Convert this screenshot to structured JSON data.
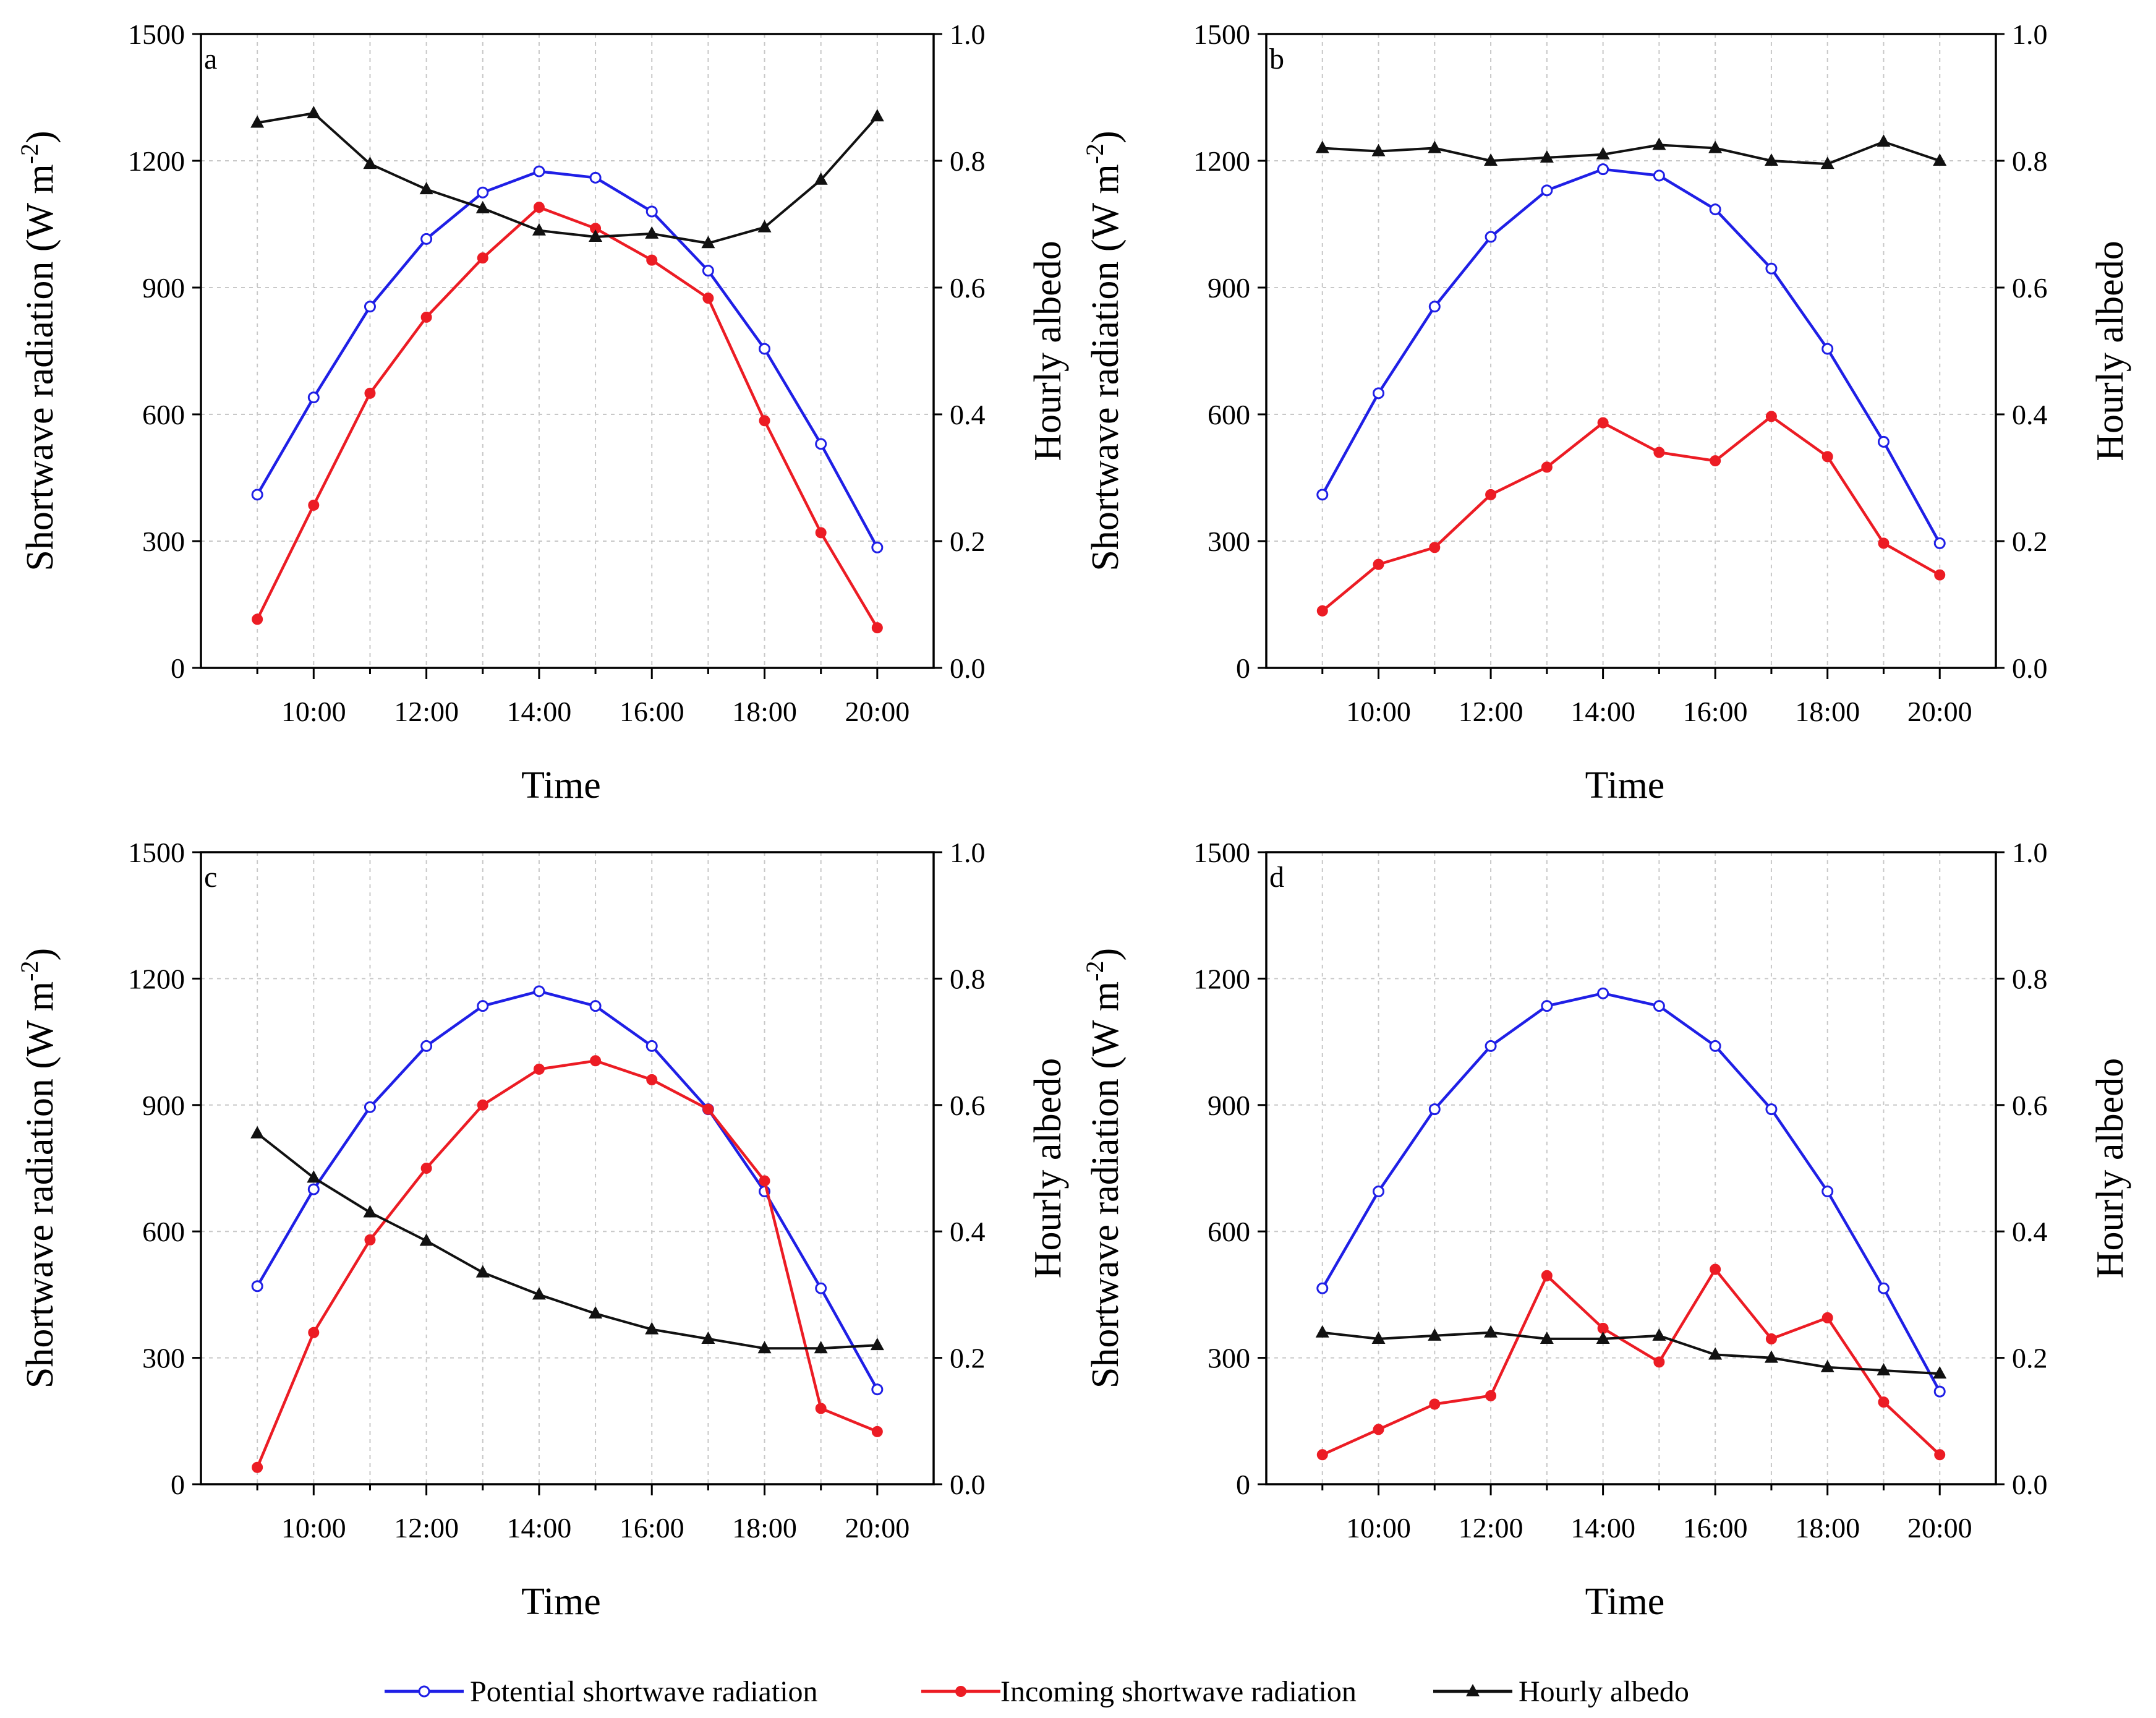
{
  "legend": {
    "potential": "Potential shortwave radiation",
    "incoming": "Incoming shortwave radiation",
    "albedo": "Hourly albedo"
  },
  "colors": {
    "potential": "#1f1fe6",
    "incoming": "#ec1c24",
    "albedo": "#111111"
  },
  "chart_data": [
    {
      "type": "line",
      "panel": "a",
      "xlabel": "Time",
      "ylabel_left": "Shortwave radiation (W m",
      "ylabel_sup": "-2",
      "ylabel_close": ")",
      "ylabel_right": "Hourly albedo",
      "x": [
        9,
        10,
        11,
        12,
        13,
        14,
        15,
        16,
        17,
        18,
        19,
        20
      ],
      "xticks": [
        "10:00",
        "12:00",
        "14:00",
        "16:00",
        "18:00",
        "20:00"
      ],
      "xtick_values": [
        10,
        12,
        14,
        16,
        18,
        20
      ],
      "yticks_left": [
        "0",
        "300",
        "600",
        "900",
        "1200",
        "1500"
      ],
      "yticks_right": [
        "0.0",
        "0.2",
        "0.4",
        "0.6",
        "0.8",
        "1.0"
      ],
      "ylim_left": [
        0,
        1500
      ],
      "ylim_right": [
        0,
        1.0
      ],
      "series": [
        {
          "name": "potential",
          "axis": "left",
          "values": [
            410,
            640,
            855,
            1015,
            1125,
            1175,
            1160,
            1080,
            940,
            755,
            530,
            285
          ]
        },
        {
          "name": "incoming",
          "axis": "left",
          "values": [
            115,
            385,
            650,
            830,
            970,
            1090,
            1040,
            965,
            875,
            585,
            320,
            95
          ]
        },
        {
          "name": "albedo",
          "axis": "right",
          "values": [
            0.86,
            0.875,
            0.795,
            0.755,
            0.725,
            0.69,
            0.68,
            0.685,
            0.67,
            0.695,
            0.77,
            0.87
          ]
        }
      ]
    },
    {
      "type": "line",
      "panel": "b",
      "xlabel": "Time",
      "ylabel_left": "Shortwave radiation (W m",
      "ylabel_sup": "-2",
      "ylabel_close": ")",
      "ylabel_right": "Hourly albedo",
      "x": [
        9,
        10,
        11,
        12,
        13,
        14,
        15,
        16,
        17,
        18,
        19,
        20
      ],
      "xticks": [
        "10:00",
        "12:00",
        "14:00",
        "16:00",
        "18:00",
        "20:00"
      ],
      "xtick_values": [
        10,
        12,
        14,
        16,
        18,
        20
      ],
      "yticks_left": [
        "0",
        "300",
        "600",
        "900",
        "1200",
        "1500"
      ],
      "yticks_right": [
        "0.0",
        "0.2",
        "0.4",
        "0.6",
        "0.8",
        "1.0"
      ],
      "ylim_left": [
        0,
        1500
      ],
      "ylim_right": [
        0,
        1.0
      ],
      "series": [
        {
          "name": "potential",
          "axis": "left",
          "values": [
            410,
            650,
            855,
            1020,
            1130,
            1180,
            1165,
            1085,
            945,
            755,
            535,
            295
          ]
        },
        {
          "name": "incoming",
          "axis": "left",
          "values": [
            135,
            245,
            285,
            410,
            475,
            580,
            510,
            490,
            595,
            500,
            295,
            220
          ]
        },
        {
          "name": "albedo",
          "axis": "right",
          "values": [
            0.82,
            0.815,
            0.82,
            0.8,
            0.805,
            0.81,
            0.825,
            0.82,
            0.8,
            0.795,
            0.83,
            0.8
          ]
        }
      ]
    },
    {
      "type": "line",
      "panel": "c",
      "xlabel": "Time",
      "ylabel_left": "Shortwave radiation (W m",
      "ylabel_sup": "-2",
      "ylabel_close": ")",
      "ylabel_right": "Hourly albedo",
      "x": [
        9,
        10,
        11,
        12,
        13,
        14,
        15,
        16,
        17,
        18,
        19,
        20
      ],
      "xticks": [
        "10:00",
        "12:00",
        "14:00",
        "16:00",
        "18:00",
        "20:00"
      ],
      "xtick_values": [
        10,
        12,
        14,
        16,
        18,
        20
      ],
      "yticks_left": [
        "0",
        "300",
        "600",
        "900",
        "1200",
        "1500"
      ],
      "yticks_right": [
        "0.0",
        "0.2",
        "0.4",
        "0.6",
        "0.8",
        "1.0"
      ],
      "ylim_left": [
        0,
        1500
      ],
      "ylim_right": [
        0,
        1.0
      ],
      "series": [
        {
          "name": "potential",
          "axis": "left",
          "values": [
            470,
            700,
            895,
            1040,
            1135,
            1170,
            1135,
            1040,
            890,
            695,
            465,
            225
          ]
        },
        {
          "name": "incoming",
          "axis": "left",
          "values": [
            40,
            360,
            580,
            750,
            900,
            985,
            1005,
            960,
            890,
            720,
            180,
            125
          ]
        },
        {
          "name": "albedo",
          "axis": "right",
          "values": [
            0.555,
            0.485,
            0.43,
            0.385,
            0.335,
            0.3,
            0.27,
            0.245,
            0.23,
            0.215,
            0.215,
            0.22
          ]
        }
      ]
    },
    {
      "type": "line",
      "panel": "d",
      "xlabel": "Time",
      "ylabel_left": "Shortwave radiation (W m",
      "ylabel_sup": "-2",
      "ylabel_close": ")",
      "ylabel_right": "Hourly albedo",
      "x": [
        9,
        10,
        11,
        12,
        13,
        14,
        15,
        16,
        17,
        18,
        19,
        20
      ],
      "xticks": [
        "10:00",
        "12:00",
        "14:00",
        "16:00",
        "18:00",
        "20:00"
      ],
      "xtick_values": [
        10,
        12,
        14,
        16,
        18,
        20
      ],
      "yticks_left": [
        "0",
        "300",
        "600",
        "900",
        "1200",
        "1500"
      ],
      "yticks_right": [
        "0.0",
        "0.2",
        "0.4",
        "0.6",
        "0.8",
        "1.0"
      ],
      "ylim_left": [
        0,
        1500
      ],
      "ylim_right": [
        0,
        1.0
      ],
      "series": [
        {
          "name": "potential",
          "axis": "left",
          "values": [
            465,
            695,
            890,
            1040,
            1135,
            1165,
            1135,
            1040,
            890,
            695,
            465,
            220
          ]
        },
        {
          "name": "incoming",
          "axis": "left",
          "values": [
            70,
            130,
            190,
            210,
            495,
            370,
            290,
            510,
            345,
            395,
            195,
            70
          ]
        },
        {
          "name": "albedo",
          "axis": "right",
          "values": [
            0.24,
            0.23,
            0.235,
            0.24,
            0.23,
            0.23,
            0.235,
            0.205,
            0.2,
            0.185,
            0.18,
            0.175
          ]
        }
      ]
    }
  ]
}
